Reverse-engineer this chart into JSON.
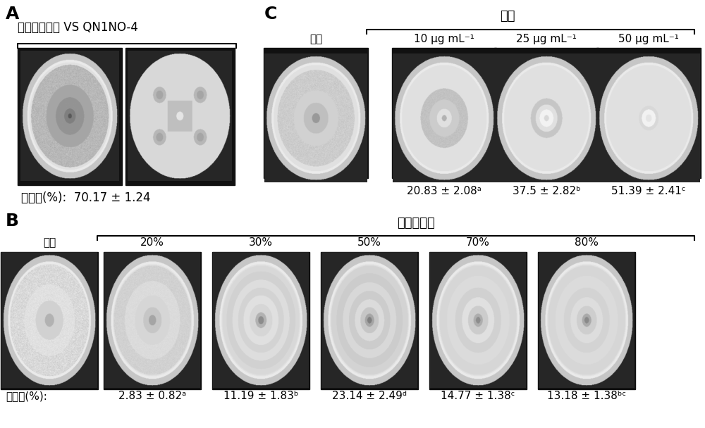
{
  "bg_color": "#ffffff",
  "panel_A_label": "A",
  "panel_B_label": "B",
  "panel_C_label": "C",
  "panel_A_title": "草莓炭疽病菌 VS QN1NO-4",
  "panel_A_caption": "抑菌率(%):  70.17 ± 1.24",
  "panel_C_group_label": "处理",
  "panel_C_control_label": "对照",
  "panel_C_doses": [
    "10 μg mL⁻¹",
    "25 μg mL⁻¹",
    "50 μg mL⁻¹"
  ],
  "panel_C_captions": [
    "20.83 ± 2.08ᵃ",
    "37.5 ± 2.82ᵇ",
    "51.39 ± 2.41ᶜ"
  ],
  "panel_B_group_label": "硫酸鐥浓度",
  "panel_B_control_label": "对照",
  "panel_B_doses": [
    "20%",
    "30%",
    "50%",
    "70%",
    "80%"
  ],
  "panel_B_caption_label": "抑菌率(%):",
  "panel_B_captions": [
    "2.83 ± 0.82ᵃ",
    "11.19 ± 1.83ᵇ",
    "23.14 ± 2.49ᵈ",
    "14.77 ± 1.38ᶜ",
    "13.18 ± 1.38ᵇᶜ"
  ]
}
